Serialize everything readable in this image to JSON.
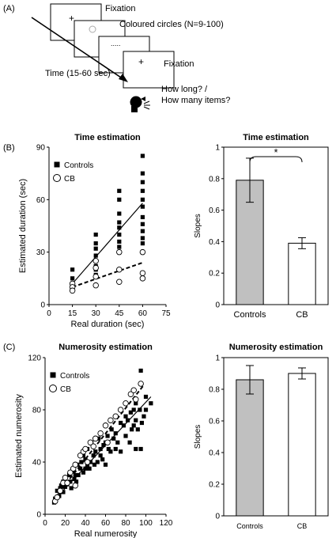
{
  "panel_a": {
    "label": "(A)",
    "frame_fixation_1": "Fixation",
    "frame_circles": "Coloured circles (N=9-100)",
    "frame_fixation_2": "Fixation",
    "time_label": "Time (15-60 sec)",
    "question_line_1": "How long? /",
    "question_line_2": "How many items?",
    "plus_symbol": "+",
    "dots_symbol": "....."
  },
  "panel_b_label": "(B)",
  "panel_c_label": "(C)",
  "chart_data": [
    {
      "id": "time-scatter",
      "type": "scatter",
      "title": "Time estimation",
      "xlabel": "Real duration (sec)",
      "ylabel": "Estimated duration (sec)",
      "xlim": [
        0,
        75
      ],
      "ylim": [
        0,
        90
      ],
      "xticks": [
        "0",
        "15",
        "30",
        "45",
        "60",
        "75"
      ],
      "yticks": [
        "0",
        "30",
        "60",
        "90"
      ],
      "legend_position": "top-left",
      "series": [
        {
          "name": "Controls",
          "marker": "filled-square",
          "points": [
            [
              15,
              20
            ],
            [
              15,
              15
            ],
            [
              15,
              12
            ],
            [
              15,
              10
            ],
            [
              30,
              40
            ],
            [
              30,
              35
            ],
            [
              30,
              32
            ],
            [
              30,
              28
            ],
            [
              30,
              25
            ],
            [
              30,
              22
            ],
            [
              30,
              20
            ],
            [
              30,
              17
            ],
            [
              45,
              65
            ],
            [
              45,
              60
            ],
            [
              45,
              52
            ],
            [
              45,
              47
            ],
            [
              45,
              44
            ],
            [
              45,
              40
            ],
            [
              45,
              36
            ],
            [
              45,
              33
            ],
            [
              45,
              30
            ],
            [
              60,
              85
            ],
            [
              60,
              75
            ],
            [
              60,
              70
            ],
            [
              60,
              65
            ],
            [
              60,
              60
            ],
            [
              60,
              56
            ],
            [
              60,
              50
            ],
            [
              60,
              46
            ],
            [
              60,
              42
            ],
            [
              60,
              38
            ],
            [
              60,
              35
            ]
          ],
          "fit": [
            [
              15,
              12
            ],
            [
              60,
              58
            ]
          ]
        },
        {
          "name": "CB",
          "marker": "open-circle",
          "points": [
            [
              15,
              12
            ],
            [
              15,
              10
            ],
            [
              15,
              8
            ],
            [
              30,
              25
            ],
            [
              30,
              21
            ],
            [
              30,
              16
            ],
            [
              30,
              11
            ],
            [
              45,
              30
            ],
            [
              45,
              20
            ],
            [
              45,
              13
            ],
            [
              60,
              30
            ],
            [
              60,
              18
            ],
            [
              60,
              15
            ]
          ],
          "fit": [
            [
              15,
              10
            ],
            [
              60,
              24
            ]
          ]
        }
      ]
    },
    {
      "id": "time-slopes",
      "type": "bar",
      "title": "Time estimation",
      "ylabel": "Slopes",
      "ylim": [
        0,
        1
      ],
      "yticks": [
        "0",
        "0.2",
        "0.4",
        "0.6",
        "0.8",
        "1"
      ],
      "categories": [
        "Controls",
        "CB"
      ],
      "values": [
        0.79,
        0.39
      ],
      "errors": [
        0.14,
        0.035
      ],
      "colors": [
        "#c0c0c0",
        "#ffffff"
      ],
      "annotation": "*"
    },
    {
      "id": "numerosity-scatter",
      "type": "scatter",
      "title": "Numerosity estimation",
      "xlabel": "Real numerosity",
      "ylabel": "Estimated numerosity",
      "xlim": [
        0,
        120
      ],
      "ylim": [
        0,
        120
      ],
      "xticks": [
        "0",
        "20",
        "40",
        "60",
        "80",
        "100",
        "120"
      ],
      "yticks": [
        "0",
        "40",
        "80",
        "120"
      ],
      "legend_position": "top-left",
      "series": [
        {
          "name": "Controls",
          "marker": "filled-square",
          "points": [
            [
              9,
              9
            ],
            [
              10,
              12
            ],
            [
              12,
              18
            ],
            [
              14,
              14
            ],
            [
              15,
              20
            ],
            [
              16,
              22
            ],
            [
              18,
              25
            ],
            [
              18,
              17
            ],
            [
              20,
              28
            ],
            [
              20,
              21
            ],
            [
              22,
              23
            ],
            [
              24,
              30
            ],
            [
              25,
              25
            ],
            [
              26,
              20
            ],
            [
              28,
              33
            ],
            [
              29,
              27
            ],
            [
              30,
              30
            ],
            [
              31,
              25
            ],
            [
              32,
              38
            ],
            [
              33,
              30
            ],
            [
              35,
              35
            ],
            [
              36,
              40
            ],
            [
              38,
              45
            ],
            [
              38,
              32
            ],
            [
              40,
              35
            ],
            [
              40,
              42
            ],
            [
              42,
              50
            ],
            [
              42,
              38
            ],
            [
              44,
              35
            ],
            [
              45,
              40
            ],
            [
              46,
              55
            ],
            [
              48,
              45
            ],
            [
              49,
              38
            ],
            [
              50,
              48
            ],
            [
              52,
              40
            ],
            [
              53,
              58
            ],
            [
              55,
              50
            ],
            [
              55,
              45
            ],
            [
              57,
              42
            ],
            [
              58,
              53
            ],
            [
              60,
              55
            ],
            [
              60,
              38
            ],
            [
              62,
              60
            ],
            [
              63,
              50
            ],
            [
              65,
              48
            ],
            [
              66,
              65
            ],
            [
              68,
              58
            ],
            [
              70,
              62
            ],
            [
              70,
              50
            ],
            [
              72,
              55
            ],
            [
              75,
              70
            ],
            [
              75,
              48
            ],
            [
              78,
              68
            ],
            [
              80,
              75
            ],
            [
              80,
              60
            ],
            [
              82,
              72
            ],
            [
              84,
              55
            ],
            [
              85,
              78
            ],
            [
              86,
              65
            ],
            [
              88,
              80
            ],
            [
              88,
              68
            ],
            [
              90,
              85
            ],
            [
              90,
              72
            ],
            [
              90,
              50
            ],
            [
              92,
              65
            ],
            [
              94,
              80
            ],
            [
              95,
              110
            ],
            [
              95,
              50
            ],
            [
              96,
              70
            ],
            [
              98,
              75
            ],
            [
              100,
              90
            ],
            [
              100,
              80
            ],
            [
              105,
              85
            ]
          ],
          "fit": [
            [
              8,
              10
            ],
            [
              105,
              90
            ]
          ]
        },
        {
          "name": "CB",
          "marker": "open-circle",
          "points": [
            [
              10,
              10
            ],
            [
              12,
              13
            ],
            [
              15,
              18
            ],
            [
              18,
              24
            ],
            [
              20,
              28
            ],
            [
              22,
              24
            ],
            [
              25,
              32
            ],
            [
              28,
              35
            ],
            [
              30,
              38
            ],
            [
              30,
              22
            ],
            [
              35,
              45
            ],
            [
              38,
              48
            ],
            [
              40,
              50
            ],
            [
              42,
              40
            ],
            [
              45,
              55
            ],
            [
              48,
              52
            ],
            [
              50,
              58
            ],
            [
              55,
              62
            ],
            [
              60,
              68
            ],
            [
              62,
              55
            ],
            [
              65,
              72
            ],
            [
              70,
              75
            ],
            [
              75,
              80
            ],
            [
              80,
              85
            ],
            [
              85,
              92
            ],
            [
              88,
              95
            ],
            [
              90,
              88
            ],
            [
              95,
              100
            ]
          ],
          "fit": [
            [
              9,
              12
            ],
            [
              97,
              98
            ]
          ]
        }
      ]
    },
    {
      "id": "numerosity-slopes",
      "type": "bar",
      "title": "Numerosity estimation",
      "ylabel": "Slopes",
      "ylim": [
        0,
        1
      ],
      "yticks": [
        "0",
        "0.2",
        "0.4",
        "0.6",
        "0.8",
        "1"
      ],
      "categories": [
        "Controls",
        "CB"
      ],
      "values": [
        0.86,
        0.9
      ],
      "errors": [
        0.09,
        0.035
      ],
      "colors": [
        "#c0c0c0",
        "#ffffff"
      ]
    }
  ]
}
